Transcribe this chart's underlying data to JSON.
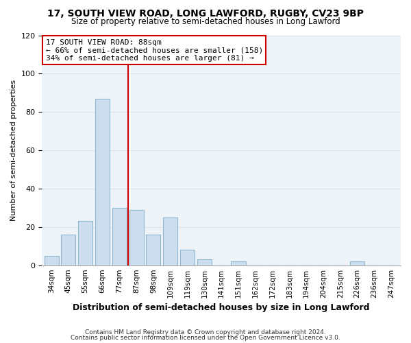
{
  "title": "17, SOUTH VIEW ROAD, LONG LAWFORD, RUGBY, CV23 9BP",
  "subtitle": "Size of property relative to semi-detached houses in Long Lawford",
  "xlabel": "Distribution of semi-detached houses by size in Long Lawford",
  "ylabel": "Number of semi-detached properties",
  "footer_lines": [
    "Contains HM Land Registry data © Crown copyright and database right 2024.",
    "Contains public sector information licensed under the Open Government Licence v3.0."
  ],
  "bin_labels": [
    "34sqm",
    "45sqm",
    "55sqm",
    "66sqm",
    "77sqm",
    "87sqm",
    "98sqm",
    "109sqm",
    "119sqm",
    "130sqm",
    "141sqm",
    "151sqm",
    "162sqm",
    "172sqm",
    "183sqm",
    "194sqm",
    "204sqm",
    "215sqm",
    "226sqm",
    "236sqm",
    "247sqm"
  ],
  "bar_values": [
    5,
    16,
    23,
    87,
    30,
    29,
    16,
    25,
    8,
    3,
    0,
    2,
    0,
    0,
    0,
    0,
    0,
    0,
    2,
    0,
    0
  ],
  "bar_color": "#ccdded",
  "bar_edge_color": "#90b8d0",
  "vline_color": "#cc0000",
  "vline_x": 4.5,
  "ylim": [
    0,
    120
  ],
  "yticks": [
    0,
    20,
    40,
    60,
    80,
    100,
    120
  ],
  "annotation_title": "17 SOUTH VIEW ROAD: 88sqm",
  "annotation_line1": "← 66% of semi-detached houses are smaller (158)",
  "annotation_line2": "34% of semi-detached houses are larger (81) →",
  "annotation_box_color": "#ffffff",
  "annotation_box_edge": "#cc0000",
  "grid_color": "#d8e4ee",
  "background_color": "#ffffff",
  "plot_bg_color": "#eef3f8"
}
